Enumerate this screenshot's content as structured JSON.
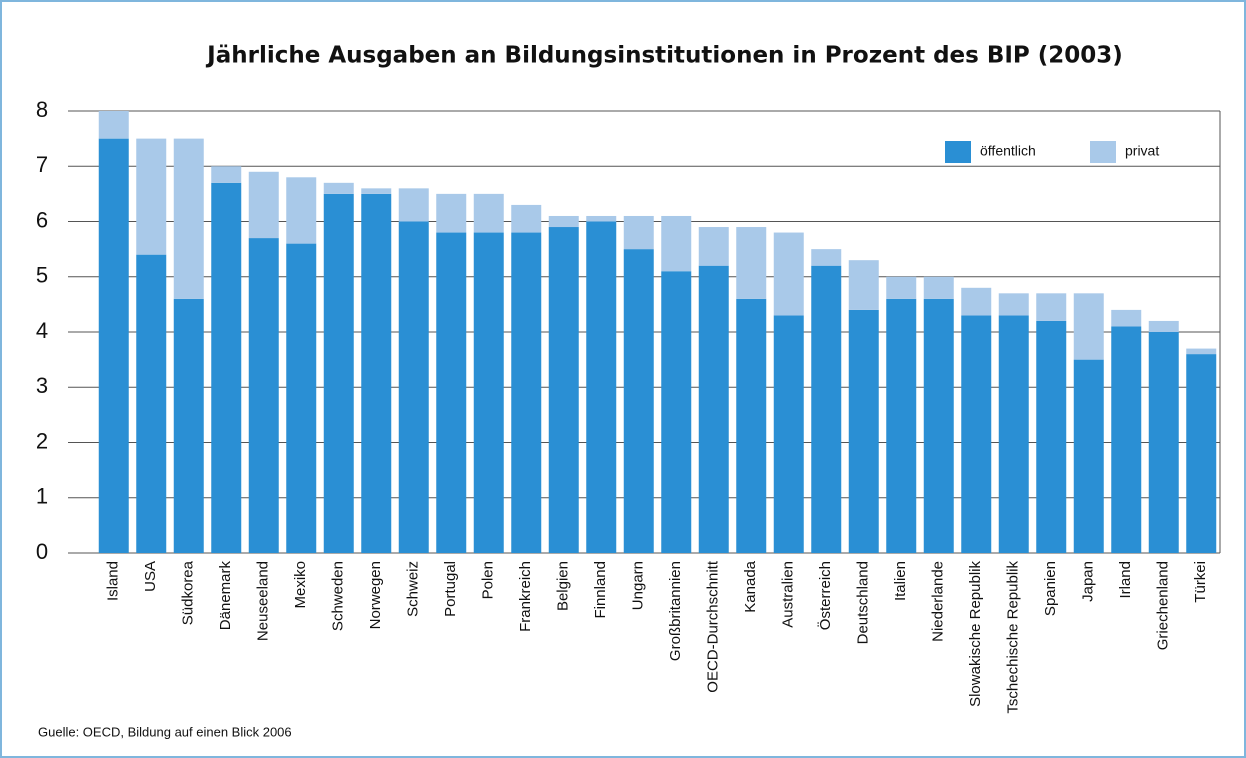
{
  "chart_data": {
    "type": "stacked_bar",
    "title": "Jährliche Ausgaben an Bildungsinstitutionen in Prozent des BIP (2003)",
    "source": "Guelle: OECD, Bildung auf einen Blick 2006",
    "categories": [
      "Island",
      "USA",
      "Südkorea",
      "Dänemark",
      "Neuseeland",
      "Mexiko",
      "Schweden",
      "Norwegen",
      "Schweiz",
      "Portugal",
      "Polen",
      "Frankreich",
      "Belgien",
      "Finnland",
      "Ungarn",
      "Großbritannien",
      "OECD-Durchschnitt",
      "Kanada",
      "Australien",
      "Österreich",
      "Deutschland",
      "Italien",
      "Niederlande",
      "Slowakische Republik",
      "Tschechische Republik",
      "Spanien",
      "Japan",
      "Irland",
      "Griechenland",
      "Türkei"
    ],
    "series": [
      {
        "name": "öffentlich",
        "color": "#2a8fd4",
        "values": [
          7.5,
          5.4,
          4.6,
          6.7,
          5.7,
          5.6,
          6.5,
          6.5,
          6.0,
          5.8,
          5.8,
          5.8,
          5.9,
          6.0,
          5.5,
          5.1,
          5.2,
          4.6,
          4.3,
          5.2,
          4.4,
          4.6,
          4.6,
          4.3,
          4.3,
          4.2,
          3.5,
          4.1,
          4.0,
          3.6
        ]
      },
      {
        "name": "privat",
        "color": "#a9c9e9",
        "values": [
          0.5,
          2.1,
          2.9,
          0.3,
          1.2,
          1.2,
          0.2,
          0.1,
          0.6,
          0.7,
          0.7,
          0.5,
          0.2,
          0.1,
          0.6,
          1.0,
          0.7,
          1.3,
          1.5,
          0.3,
          0.9,
          0.4,
          0.4,
          0.5,
          0.4,
          0.5,
          1.2,
          0.3,
          0.2,
          0.1
        ]
      }
    ],
    "ylim": [
      0,
      8
    ],
    "yticks": [
      0,
      1,
      2,
      3,
      4,
      5,
      6,
      7,
      8
    ],
    "grid": true,
    "legend": "top-right"
  }
}
